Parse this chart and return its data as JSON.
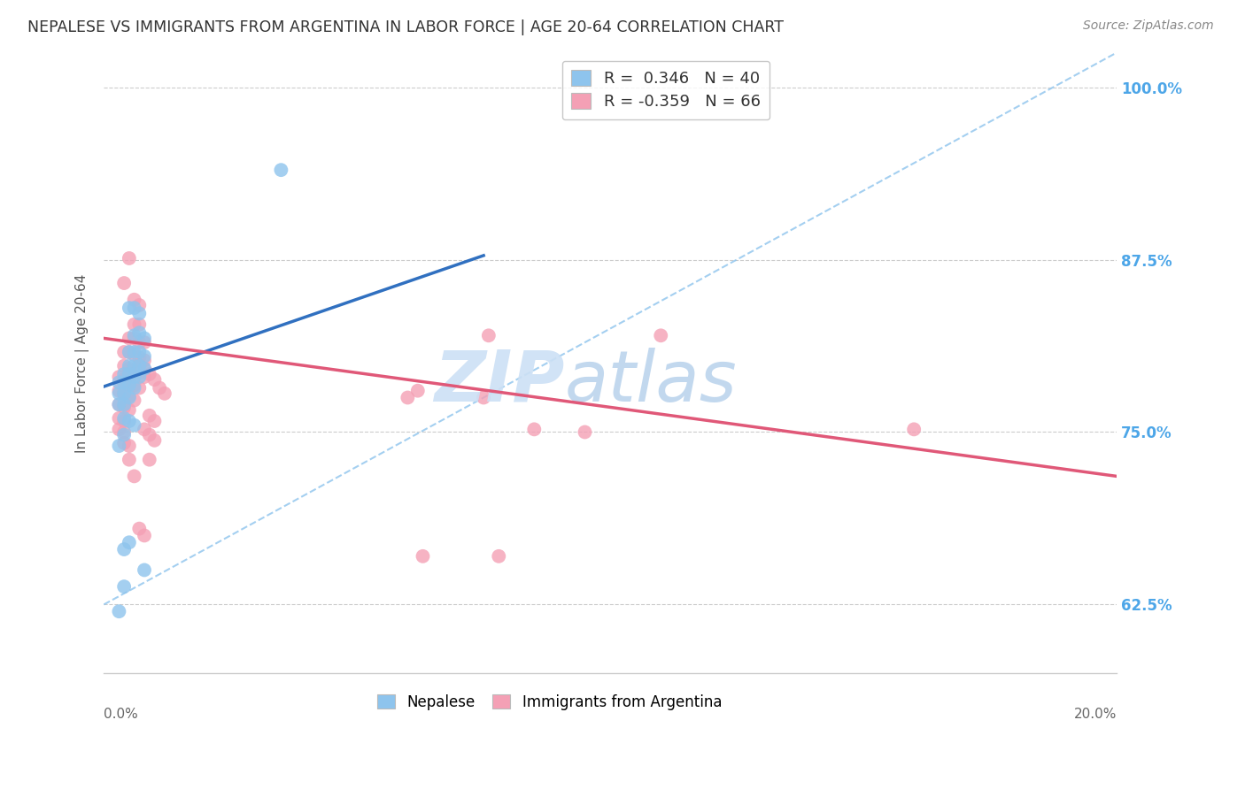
{
  "title": "NEPALESE VS IMMIGRANTS FROM ARGENTINA IN LABOR FORCE | AGE 20-64 CORRELATION CHART",
  "source": "Source: ZipAtlas.com",
  "ylabel": "In Labor Force | Age 20-64",
  "xlim": [
    0.0,
    0.2
  ],
  "ylim": [
    0.575,
    1.025
  ],
  "yticks": [
    0.625,
    0.75,
    0.875,
    1.0
  ],
  "ytick_labels": [
    "62.5%",
    "75.0%",
    "87.5%",
    "100.0%"
  ],
  "xtick_labels_ends": [
    "0.0%",
    "20.0%"
  ],
  "blue_R": 0.346,
  "blue_N": 40,
  "pink_R": -0.359,
  "pink_N": 66,
  "blue_color": "#8ec4ed",
  "pink_color": "#f4a0b5",
  "blue_line_color": "#3070c0",
  "pink_line_color": "#e05878",
  "legend_label_blue": "Nepalese",
  "legend_label_pink": "Immigrants from Argentina",
  "blue_line": [
    [
      0.0,
      0.783
    ],
    [
      0.075,
      0.878
    ]
  ],
  "pink_line": [
    [
      0.0,
      0.818
    ],
    [
      0.2,
      0.718
    ]
  ],
  "diag_line": [
    [
      0.0,
      0.625
    ],
    [
      0.2,
      1.025
    ]
  ],
  "blue_scatter": [
    [
      0.005,
      0.84
    ],
    [
      0.006,
      0.84
    ],
    [
      0.007,
      0.836
    ],
    [
      0.006,
      0.82
    ],
    [
      0.007,
      0.822
    ],
    [
      0.008,
      0.818
    ],
    [
      0.005,
      0.808
    ],
    [
      0.006,
      0.808
    ],
    [
      0.007,
      0.808
    ],
    [
      0.008,
      0.805
    ],
    [
      0.005,
      0.798
    ],
    [
      0.006,
      0.798
    ],
    [
      0.007,
      0.798
    ],
    [
      0.008,
      0.796
    ],
    [
      0.004,
      0.792
    ],
    [
      0.005,
      0.792
    ],
    [
      0.006,
      0.79
    ],
    [
      0.007,
      0.79
    ],
    [
      0.003,
      0.786
    ],
    [
      0.004,
      0.786
    ],
    [
      0.005,
      0.784
    ],
    [
      0.006,
      0.782
    ],
    [
      0.003,
      0.778
    ],
    [
      0.004,
      0.778
    ],
    [
      0.005,
      0.775
    ],
    [
      0.003,
      0.77
    ],
    [
      0.004,
      0.77
    ],
    [
      0.004,
      0.76
    ],
    [
      0.005,
      0.758
    ],
    [
      0.004,
      0.748
    ],
    [
      0.003,
      0.74
    ],
    [
      0.006,
      0.755
    ],
    [
      0.004,
      0.665
    ],
    [
      0.005,
      0.67
    ],
    [
      0.003,
      0.62
    ],
    [
      0.004,
      0.638
    ],
    [
      0.035,
      0.94
    ],
    [
      0.008,
      0.65
    ]
  ],
  "pink_scatter": [
    [
      0.005,
      0.876
    ],
    [
      0.004,
      0.858
    ],
    [
      0.006,
      0.846
    ],
    [
      0.007,
      0.842
    ],
    [
      0.006,
      0.828
    ],
    [
      0.007,
      0.828
    ],
    [
      0.005,
      0.818
    ],
    [
      0.006,
      0.818
    ],
    [
      0.007,
      0.815
    ],
    [
      0.008,
      0.815
    ],
    [
      0.004,
      0.808
    ],
    [
      0.005,
      0.808
    ],
    [
      0.006,
      0.806
    ],
    [
      0.007,
      0.804
    ],
    [
      0.008,
      0.802
    ],
    [
      0.004,
      0.798
    ],
    [
      0.005,
      0.796
    ],
    [
      0.006,
      0.795
    ],
    [
      0.007,
      0.793
    ],
    [
      0.008,
      0.79
    ],
    [
      0.003,
      0.79
    ],
    [
      0.004,
      0.788
    ],
    [
      0.005,
      0.786
    ],
    [
      0.006,
      0.784
    ],
    [
      0.007,
      0.782
    ],
    [
      0.003,
      0.78
    ],
    [
      0.004,
      0.778
    ],
    [
      0.005,
      0.776
    ],
    [
      0.006,
      0.773
    ],
    [
      0.003,
      0.77
    ],
    [
      0.004,
      0.768
    ],
    [
      0.005,
      0.766
    ],
    [
      0.003,
      0.76
    ],
    [
      0.004,
      0.758
    ],
    [
      0.003,
      0.752
    ],
    [
      0.004,
      0.75
    ],
    [
      0.004,
      0.742
    ],
    [
      0.005,
      0.74
    ],
    [
      0.005,
      0.73
    ],
    [
      0.006,
      0.718
    ],
    [
      0.007,
      0.798
    ],
    [
      0.008,
      0.796
    ],
    [
      0.009,
      0.792
    ],
    [
      0.01,
      0.788
    ],
    [
      0.011,
      0.782
    ],
    [
      0.012,
      0.778
    ],
    [
      0.009,
      0.762
    ],
    [
      0.01,
      0.758
    ],
    [
      0.008,
      0.752
    ],
    [
      0.009,
      0.748
    ],
    [
      0.01,
      0.744
    ],
    [
      0.009,
      0.73
    ],
    [
      0.007,
      0.68
    ],
    [
      0.008,
      0.675
    ],
    [
      0.062,
      0.78
    ],
    [
      0.076,
      0.82
    ],
    [
      0.085,
      0.752
    ],
    [
      0.11,
      0.82
    ],
    [
      0.095,
      0.75
    ],
    [
      0.063,
      0.66
    ],
    [
      0.078,
      0.66
    ],
    [
      0.16,
      0.752
    ],
    [
      0.075,
      0.775
    ],
    [
      0.06,
      0.775
    ]
  ],
  "background_color": "#ffffff",
  "grid_color": "#cccccc",
  "title_color": "#333333",
  "right_label_color": "#4da6e8",
  "watermark_zip_color": "#cce0f5",
  "watermark_atlas_color": "#a8c8e8"
}
